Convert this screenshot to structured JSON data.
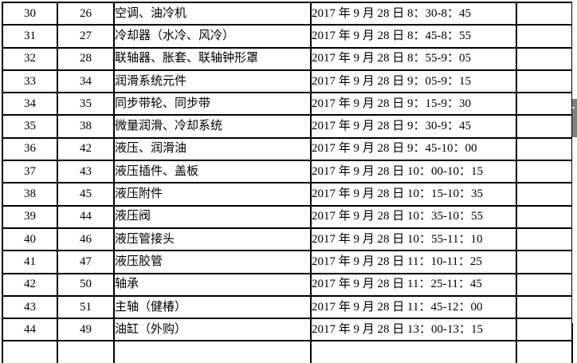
{
  "colors": {
    "background": "#ffffff",
    "border": "#000000",
    "text": "#000000",
    "scrollbar_thumb": "#7f7f7f"
  },
  "table": {
    "rows": [
      [
        "30",
        "26",
        "空调、油冷机",
        "2017 年 9 月 28 日 8：30-8：45",
        ""
      ],
      [
        "31",
        "27",
        "冷却器（水冷、风冷）",
        "2017 年 9 月 28 日 8：45-8：55",
        ""
      ],
      [
        "32",
        "28",
        "联轴器、胀套、联轴钟形罩",
        "2017 年 9 月 28 日 8：55-9：05",
        ""
      ],
      [
        "33",
        "34",
        "润滑系统元件",
        "2017 年 9 月 28 日 9：05-9：15",
        ""
      ],
      [
        "34",
        "35",
        "同步带轮、同步带",
        "2017 年 9 月 28 日 9：15-9：30",
        ""
      ],
      [
        "35",
        "38",
        "微量润滑、冷却系统",
        "2017 年 9 月 28 日 9：30-9：45",
        ""
      ],
      [
        "36",
        "42",
        "液压、润滑油",
        "2017 年 9 月 28 日 9：45-10：00",
        ""
      ],
      [
        "37",
        "43",
        "液压插件、盖板",
        "2017 年 9 月 28 日 10：00-10：15",
        ""
      ],
      [
        "38",
        "45",
        "液压附件",
        "2017 年 9 月 28 日 10：15-10：35",
        ""
      ],
      [
        "39",
        "44",
        "液压阀",
        "2017 年 9 月 28 日 10：35-10：55",
        ""
      ],
      [
        "40",
        "46",
        "液压管接头",
        "2017 年 9 月 28 日 10：55-11：10",
        ""
      ],
      [
        "41",
        "47",
        "液压胶管",
        "2017 年 9 月 28 日 11：10-11：25",
        ""
      ],
      [
        "42",
        "50",
        "轴承",
        "2017 年 9 月 28 日 11：25-11：45",
        ""
      ],
      [
        "43",
        "51",
        "主轴（健椿）",
        "2017 年 9 月 28 日 11：45-12：00",
        ""
      ],
      [
        "44",
        "49",
        "油缸（外购）",
        "2017 年 9 月 28 日 13：00-13：15",
        ""
      ]
    ]
  }
}
